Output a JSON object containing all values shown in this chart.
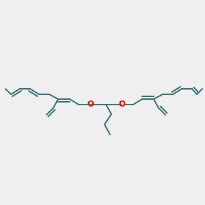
{
  "bg_color": "#efefef",
  "bond_color": "#2d6b6b",
  "oxygen_color": "#ff0000",
  "line_width": 1.4,
  "fig_size": [
    3.0,
    3.0
  ],
  "dpi": 100
}
